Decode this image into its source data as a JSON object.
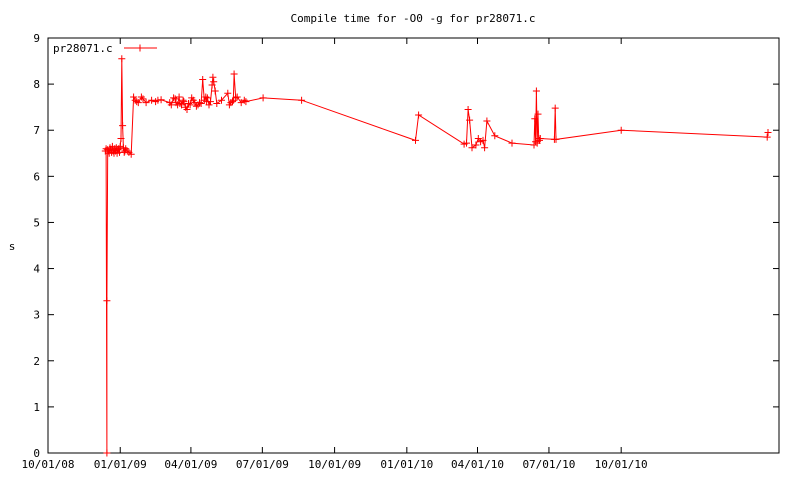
{
  "chart_data": {
    "type": "line",
    "title": "Compile time for -O0 -g for pr28071.c",
    "xlabel": "",
    "ylabel": "s",
    "xlim": [
      "2008-10-01",
      "2011-04-20"
    ],
    "ylim": [
      0,
      9
    ],
    "yticks": [
      "0",
      "1",
      "2",
      "3",
      "4",
      "5",
      "6",
      "7",
      "8",
      "9"
    ],
    "xticks": [
      {
        "date": "2008-10-01",
        "label": "10/01/08"
      },
      {
        "date": "2009-01-01",
        "label": "01/01/09"
      },
      {
        "date": "2009-04-01",
        "label": "04/01/09"
      },
      {
        "date": "2009-07-01",
        "label": "07/01/09"
      },
      {
        "date": "2009-10-01",
        "label": "10/01/09"
      },
      {
        "date": "2010-01-01",
        "label": "01/01/10"
      },
      {
        "date": "2010-04-01",
        "label": "04/01/10"
      },
      {
        "date": "2010-07-01",
        "label": "07/01/10"
      },
      {
        "date": "2010-10-01",
        "label": "10/01/10"
      }
    ],
    "grid": false,
    "legend_position": "top-left",
    "color": "#ff0000",
    "series": [
      {
        "name": "pr28071.c",
        "x": [
          "2008-12-13",
          "2008-12-14",
          "2008-12-15",
          "2008-12-15",
          "2008-12-16",
          "2008-12-17",
          "2008-12-18",
          "2008-12-19",
          "2008-12-20",
          "2008-12-21",
          "2008-12-22",
          "2008-12-23",
          "2008-12-24",
          "2008-12-25",
          "2008-12-26",
          "2008-12-27",
          "2008-12-28",
          "2008-12-29",
          "2008-12-30",
          "2008-12-31",
          "2009-01-01",
          "2009-01-02",
          "2009-01-03",
          "2009-01-04",
          "2009-01-05",
          "2009-01-06",
          "2009-01-07",
          "2009-01-08",
          "2009-01-10",
          "2009-01-12",
          "2009-01-15",
          "2009-01-18",
          "2009-01-20",
          "2009-01-22",
          "2009-01-24",
          "2009-01-28",
          "2009-01-30",
          "2009-02-03",
          "2009-02-10",
          "2009-02-15",
          "2009-02-18",
          "2009-02-22",
          "2009-03-05",
          "2009-03-07",
          "2009-03-10",
          "2009-03-12",
          "2009-03-13",
          "2009-03-15",
          "2009-03-17",
          "2009-03-18",
          "2009-03-20",
          "2009-03-22",
          "2009-03-23",
          "2009-03-25",
          "2009-03-27",
          "2009-03-29",
          "2009-03-31",
          "2009-04-02",
          "2009-04-04",
          "2009-04-06",
          "2009-04-08",
          "2009-04-10",
          "2009-04-12",
          "2009-04-14",
          "2009-04-16",
          "2009-04-18",
          "2009-04-20",
          "2009-04-21",
          "2009-04-22",
          "2009-04-24",
          "2009-04-26",
          "2009-04-28",
          "2009-04-29",
          "2009-04-30",
          "2009-05-02",
          "2009-05-04",
          "2009-05-10",
          "2009-05-18",
          "2009-05-20",
          "2009-05-22",
          "2009-05-24",
          "2009-05-25",
          "2009-05-26",
          "2009-05-28",
          "2009-05-30",
          "2009-06-04",
          "2009-06-08",
          "2009-06-10",
          "2009-07-02",
          "2009-08-20",
          "2010-01-12",
          "2010-01-16",
          "2010-03-15",
          "2010-03-18",
          "2010-03-20",
          "2010-03-22",
          "2010-03-25",
          "2010-03-30",
          "2010-04-02",
          "2010-04-05",
          "2010-04-08",
          "2010-04-10",
          "2010-04-13",
          "2010-04-23",
          "2010-05-15",
          "2010-06-12",
          "2010-06-13",
          "2010-06-14",
          "2010-06-15",
          "2010-06-16",
          "2010-06-17",
          "2010-06-18",
          "2010-06-19",
          "2010-06-20",
          "2010-07-08",
          "2010-07-09",
          "2010-07-10",
          "2010-10-01",
          "2011-04-05",
          "2011-04-06"
        ],
        "y": [
          6.55,
          6.6,
          0,
          3.3,
          6.58,
          6.55,
          6.5,
          6.62,
          6.58,
          6.52,
          6.65,
          6.55,
          6.5,
          6.6,
          6.55,
          6.62,
          6.5,
          6.58,
          6.6,
          6.52,
          6.65,
          6.82,
          8.55,
          7.1,
          6.62,
          6.52,
          6.55,
          6.6,
          6.55,
          6.52,
          6.48,
          7.72,
          7.65,
          7.62,
          7.6,
          7.72,
          7.68,
          7.6,
          7.65,
          7.62,
          7.65,
          7.66,
          7.6,
          7.55,
          7.7,
          7.68,
          7.6,
          7.55,
          7.72,
          7.58,
          7.55,
          7.65,
          7.62,
          7.5,
          7.45,
          7.58,
          7.55,
          7.7,
          7.65,
          7.6,
          7.52,
          7.55,
          7.6,
          7.58,
          8.1,
          7.65,
          7.72,
          7.62,
          7.7,
          7.55,
          7.62,
          7.98,
          8.15,
          8.05,
          7.85,
          7.58,
          7.65,
          7.8,
          7.55,
          7.6,
          7.62,
          7.65,
          8.22,
          7.7,
          7.72,
          7.6,
          7.65,
          7.62,
          7.7,
          7.65,
          6.78,
          7.33,
          6.7,
          6.72,
          7.45,
          7.22,
          6.62,
          6.68,
          6.82,
          6.75,
          6.78,
          6.62,
          7.2,
          6.88,
          6.72,
          6.68,
          7.25,
          6.75,
          7.85,
          6.72,
          7.35,
          6.82,
          6.78,
          6.82,
          6.8,
          7.48,
          6.8,
          7.0,
          6.85,
          6.95
        ]
      }
    ]
  }
}
